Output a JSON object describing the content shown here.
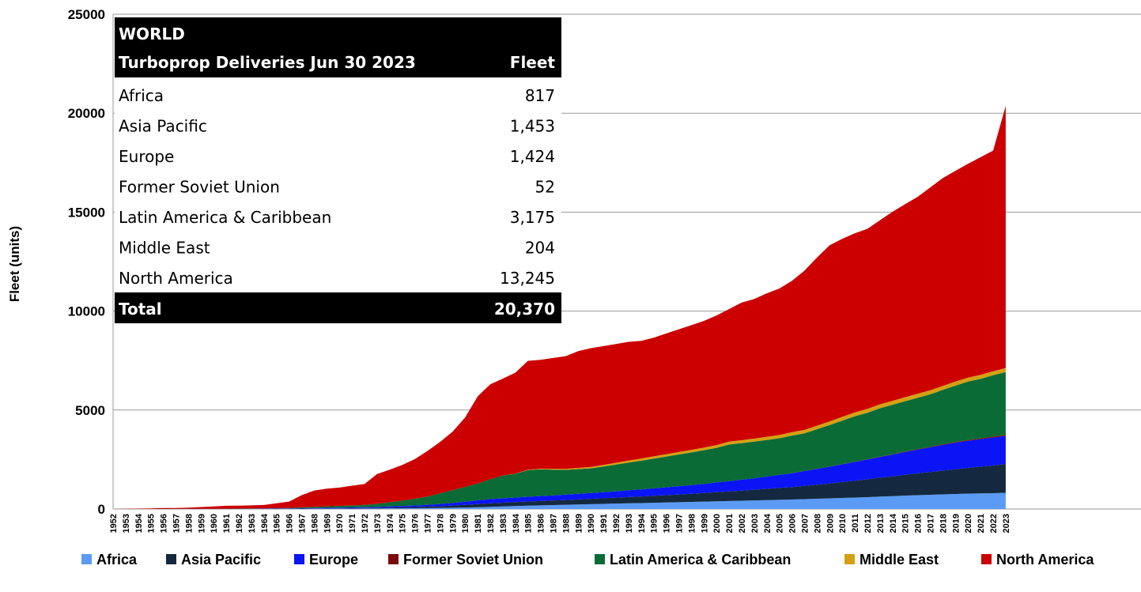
{
  "chart_data": {
    "type": "area",
    "stacked": true,
    "ylabel": "Fleet (units)",
    "xlabel": "",
    "ylim": [
      0,
      25000
    ],
    "yticks": [
      0,
      5000,
      10000,
      15000,
      20000,
      25000
    ],
    "grid": "horizontal",
    "legend_position": "bottom",
    "x": [
      1952,
      1953,
      1954,
      1955,
      1956,
      1957,
      1958,
      1959,
      1960,
      1961,
      1962,
      1963,
      1964,
      1965,
      1966,
      1967,
      1968,
      1969,
      1970,
      1971,
      1972,
      1973,
      1974,
      1975,
      1976,
      1977,
      1978,
      1979,
      1980,
      1981,
      1982,
      1983,
      1984,
      1985,
      1986,
      1987,
      1988,
      1989,
      1990,
      1991,
      1992,
      1993,
      1994,
      1995,
      1996,
      1997,
      1998,
      1999,
      2000,
      2001,
      2002,
      2003,
      2004,
      2005,
      2006,
      2007,
      2008,
      2009,
      2010,
      2011,
      2012,
      2013,
      2014,
      2015,
      2016,
      2017,
      2018,
      2019,
      2020,
      2021,
      2022,
      2023
    ],
    "x_tick_labels": [
      "1952",
      "1953",
      "1954",
      "1955",
      "1956",
      "1957",
      "1958",
      "1959",
      "1960",
      "1961",
      "1962",
      "1963",
      "1964",
      "1965",
      "1966",
      "1967",
      "1968",
      "1969",
      "1970",
      "1971",
      "1972",
      "1973",
      "1974",
      "1975",
      "1976",
      "1977",
      "1978",
      "1979",
      "1980",
      "1981",
      "1982",
      "1983",
      "1984",
      "1985",
      "1986",
      "1987",
      "1988",
      "1989",
      "1990",
      "1991",
      "1992",
      "1993",
      "1994",
      "1995",
      "1996",
      "1997",
      "1998",
      "1999",
      "2000",
      "2001",
      "2002",
      "2003",
      "2004",
      "2005",
      "2006",
      "2007",
      "2008",
      "2009",
      "2010",
      "2011",
      "2012",
      "2013",
      "2014",
      "2015",
      "2016",
      "2017",
      "2018",
      "2019",
      "2020",
      "2021",
      "2022",
      "2023"
    ],
    "series": [
      {
        "name": "Africa",
        "color": "#5b9bf5",
        "values": [
          0,
          0,
          0,
          1,
          1,
          2,
          3,
          4,
          5,
          6,
          6,
          7,
          8,
          9,
          10,
          12,
          14,
          16,
          18,
          20,
          22,
          25,
          30,
          35,
          40,
          45,
          55,
          65,
          75,
          90,
          110,
          130,
          150,
          170,
          185,
          200,
          215,
          230,
          245,
          260,
          275,
          290,
          300,
          315,
          330,
          345,
          360,
          375,
          390,
          405,
          420,
          435,
          450,
          465,
          480,
          500,
          520,
          540,
          560,
          580,
          600,
          630,
          650,
          680,
          700,
          720,
          740,
          760,
          780,
          790,
          800,
          817
        ]
      },
      {
        "name": "Asia Pacific",
        "color": "#14293f",
        "values": [
          0,
          0,
          0,
          0,
          0,
          0,
          1,
          1,
          1,
          1,
          2,
          2,
          3,
          4,
          5,
          7,
          10,
          13,
          16,
          20,
          25,
          30,
          40,
          50,
          60,
          75,
          90,
          110,
          135,
          160,
          180,
          190,
          200,
          210,
          220,
          230,
          240,
          255,
          270,
          285,
          300,
          315,
          330,
          350,
          370,
          390,
          410,
          435,
          460,
          485,
          510,
          540,
          570,
          600,
          630,
          670,
          710,
          750,
          800,
          850,
          900,
          950,
          1000,
          1050,
          1100,
          1150,
          1200,
          1250,
          1300,
          1350,
          1400,
          1453
        ]
      },
      {
        "name": "Europe",
        "color": "#0a14f5",
        "values": [
          0,
          0,
          0,
          0,
          0,
          1,
          1,
          2,
          3,
          4,
          5,
          6,
          8,
          10,
          15,
          20,
          25,
          30,
          35,
          40,
          45,
          50,
          60,
          70,
          80,
          90,
          110,
          130,
          160,
          190,
          210,
          220,
          230,
          240,
          250,
          260,
          270,
          280,
          290,
          305,
          320,
          340,
          360,
          380,
          400,
          420,
          440,
          460,
          490,
          520,
          550,
          580,
          620,
          660,
          700,
          750,
          800,
          850,
          900,
          950,
          1000,
          1050,
          1100,
          1150,
          1200,
          1250,
          1300,
          1340,
          1370,
          1390,
          1410,
          1424
        ]
      },
      {
        "name": "Former Soviet Union",
        "color": "#7a0a0a",
        "values": [
          0,
          0,
          0,
          0,
          0,
          0,
          0,
          0,
          0,
          0,
          0,
          0,
          0,
          0,
          0,
          0,
          0,
          0,
          0,
          0,
          0,
          0,
          0,
          0,
          0,
          0,
          0,
          0,
          0,
          0,
          0,
          0,
          0,
          0,
          0,
          0,
          0,
          0,
          0,
          0,
          0,
          0,
          0,
          0,
          0,
          0,
          0,
          0,
          0,
          0,
          0,
          0,
          0,
          1,
          2,
          3,
          4,
          5,
          6,
          8,
          10,
          13,
          16,
          19,
          22,
          26,
          30,
          34,
          38,
          42,
          47,
          52
        ]
      },
      {
        "name": "Latin America & Caribbean",
        "color": "#0a6b36",
        "values": [
          0,
          0,
          0,
          0,
          0,
          0,
          1,
          2,
          3,
          4,
          5,
          7,
          10,
          15,
          25,
          40,
          55,
          70,
          85,
          100,
          120,
          160,
          210,
          270,
          340,
          420,
          530,
          650,
          750,
          850,
          1000,
          1150,
          1200,
          1350,
          1350,
          1300,
          1250,
          1250,
          1250,
          1300,
          1350,
          1400,
          1450,
          1500,
          1550,
          1600,
          1650,
          1700,
          1750,
          1850,
          1850,
          1850,
          1850,
          1850,
          1900,
          1900,
          2000,
          2100,
          2200,
          2300,
          2350,
          2450,
          2500,
          2550,
          2600,
          2650,
          2750,
          2850,
          2950,
          3000,
          3100,
          3175
        ]
      },
      {
        "name": "Middle East",
        "color": "#d4a012",
        "values": [
          0,
          0,
          0,
          0,
          0,
          0,
          0,
          0,
          0,
          0,
          0,
          0,
          0,
          0,
          0,
          0,
          0,
          0,
          0,
          0,
          0,
          0,
          0,
          0,
          0,
          0,
          0,
          0,
          0,
          0,
          0,
          0,
          10,
          20,
          30,
          40,
          50,
          60,
          70,
          80,
          90,
          100,
          110,
          115,
          120,
          125,
          130,
          135,
          140,
          145,
          150,
          155,
          160,
          165,
          170,
          175,
          180,
          185,
          190,
          195,
          198,
          200,
          202,
          203,
          204,
          204,
          204,
          204,
          204,
          204,
          204,
          204
        ]
      },
      {
        "name": "North America",
        "color": "#cc0000",
        "values": [
          0,
          10,
          20,
          30,
          45,
          50,
          60,
          90,
          120,
          150,
          150,
          160,
          175,
          250,
          320,
          620,
          830,
          900,
          930,
          1000,
          1050,
          1500,
          1650,
          1800,
          2000,
          2300,
          2600,
          2950,
          3500,
          4400,
          4800,
          4900,
          5100,
          5500,
          5500,
          5600,
          5700,
          5900,
          6000,
          6000,
          6000,
          6000,
          5950,
          6000,
          6100,
          6200,
          6300,
          6400,
          6550,
          6700,
          6950,
          7050,
          7250,
          7400,
          7650,
          8050,
          8500,
          8900,
          9000,
          9050,
          9100,
          9300,
          9550,
          9750,
          9950,
          10250,
          10500,
          10650,
          10800,
          11000,
          11150,
          13245
        ]
      }
    ]
  },
  "table": {
    "title": "WORLD",
    "header_left": "Turboprop Deliveries Jun 30 2023",
    "header_right": "Fleet",
    "rows": [
      {
        "label": "Africa",
        "value": "817"
      },
      {
        "label": "Asia Pacific",
        "value": "1,453"
      },
      {
        "label": "Europe",
        "value": "1,424"
      },
      {
        "label": "Former Soviet Union",
        "value": "52"
      },
      {
        "label": "Latin America & Caribbean",
        "value": "3,175"
      },
      {
        "label": "Middle East",
        "value": "204"
      },
      {
        "label": "North America",
        "value": "13,245"
      }
    ],
    "total_label": "Total",
    "total_value": "20,370"
  }
}
